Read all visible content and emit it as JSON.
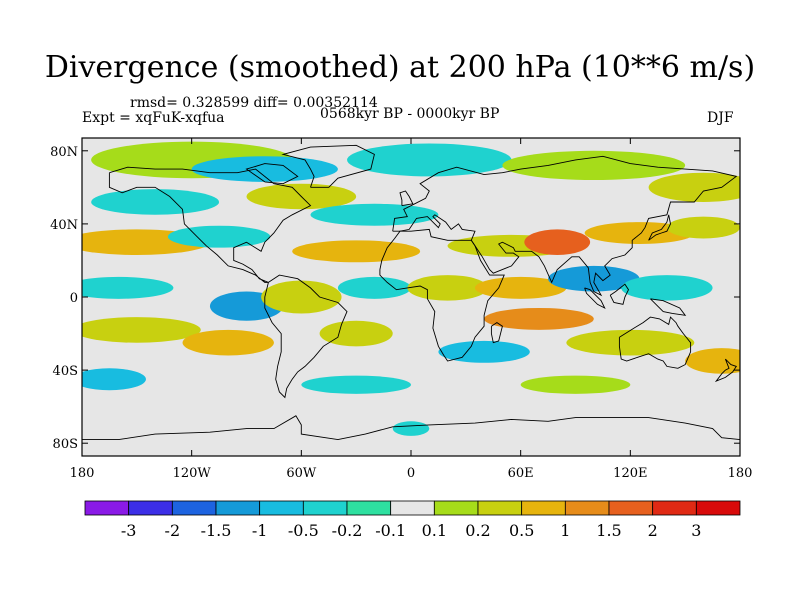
{
  "title": "Divergence (smoothed) at 200 hPa (10**6 m/s)",
  "stats": "rmsd= 0.328599  diff= 0.00352114",
  "experiment": "Expt = xqFuK-xqfua",
  "period": "0568kyr BP - 0000kyr BP",
  "season": "DJF",
  "axes": {
    "lon_ticks": [
      "180",
      "120W",
      "60W",
      "0",
      "60E",
      "120E",
      "180"
    ],
    "lat_ticks": [
      "80N",
      "40N",
      "0",
      "40S",
      "80S"
    ]
  },
  "colorbar": {
    "labels": [
      "-3",
      "-2",
      "-1.5",
      "-1",
      "-0.5",
      "-0.2",
      "-0.1",
      "0.1",
      "0.2",
      "0.5",
      "1",
      "1.5",
      "2",
      "3"
    ],
    "colors": [
      "#8a1ae6",
      "#3c2ee6",
      "#1d63e0",
      "#159ad8",
      "#18bce0",
      "#1fd2cf",
      "#2ee0a0",
      "#e6e6e6",
      "#a6dc1a",
      "#c8d010",
      "#e6b40e",
      "#e68c1a",
      "#e6601e",
      "#e02a14",
      "#d80a0a"
    ]
  },
  "colors": {
    "ocean": "#e6e6e6",
    "coast": "#000000"
  }
}
